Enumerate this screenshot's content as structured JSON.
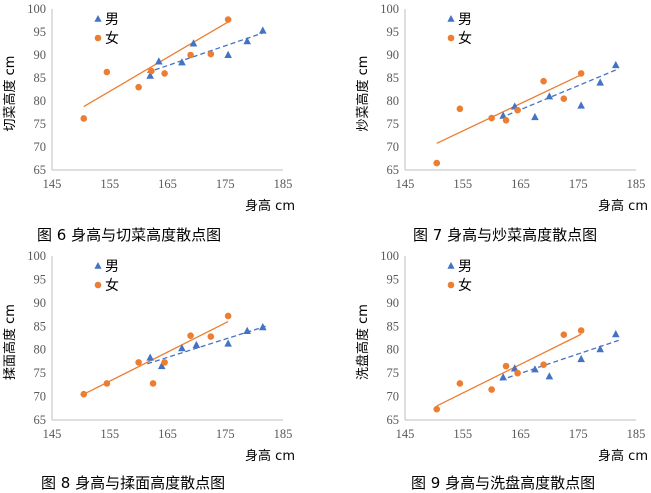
{
  "figure": {
    "captions": [
      "图 6  身高与切菜高度散点图",
      "图 7 身高与炒菜高度散点图",
      "图 8  身高与揉面高度散点图",
      "图 9 身高与洗盘高度散点图"
    ]
  },
  "chart_data": [
    {
      "type": "scatter",
      "title": "",
      "caption": "图 6  身高与切菜高度散点图",
      "xlabel": "身高  cm",
      "ylabel": "切菜高度  cm",
      "xlim": [
        145,
        185
      ],
      "ylim": [
        65,
        100
      ],
      "xticks": [
        145,
        155,
        165,
        175,
        185
      ],
      "yticks": [
        65,
        70,
        75,
        80,
        85,
        90,
        95,
        100
      ],
      "grid": false,
      "legend": "top-left",
      "series": [
        {
          "name": "男",
          "marker": "triangle",
          "color": "#4472C4",
          "points": [
            [
              162,
              85.5
            ],
            [
              163.5,
              88.6
            ],
            [
              167.5,
              88.4
            ],
            [
              169.5,
              92.5
            ],
            [
              175.5,
              90
            ],
            [
              178.8,
              93
            ],
            [
              181.5,
              95.3
            ]
          ],
          "trend": {
            "style": "dashed",
            "x": [
              161.5,
              182
            ],
            "y": [
              86.2,
              95
            ]
          }
        },
        {
          "name": "女",
          "marker": "circle",
          "color": "#ED7D31",
          "points": [
            [
              150.5,
              76.2
            ],
            [
              154.5,
              86.3
            ],
            [
              160,
              83
            ],
            [
              162.2,
              86.5
            ],
            [
              164.5,
              86
            ],
            [
              169,
              90
            ],
            [
              172.5,
              90.2
            ],
            [
              175.5,
              97.7
            ]
          ],
          "trend": {
            "style": "solid",
            "x": [
              150.5,
              175.5
            ],
            "y": [
              78.8,
              97.2
            ]
          }
        }
      ]
    },
    {
      "type": "scatter",
      "title": "",
      "caption": "图 7 身高与炒菜高度散点图",
      "xlabel": "身高  cm",
      "ylabel": "炒菜高度  cm",
      "xlim": [
        145,
        185
      ],
      "ylim": [
        65,
        100
      ],
      "xticks": [
        145,
        155,
        165,
        175,
        185
      ],
      "yticks": [
        65,
        70,
        75,
        80,
        85,
        90,
        95,
        100
      ],
      "grid": false,
      "legend": "top-left",
      "series": [
        {
          "name": "男",
          "marker": "triangle",
          "color": "#4472C4",
          "points": [
            [
              162,
              76.8
            ],
            [
              164,
              78.8
            ],
            [
              167.5,
              76.5
            ],
            [
              170,
              81
            ],
            [
              175.5,
              79
            ],
            [
              178.8,
              84
            ],
            [
              181.5,
              87.8
            ]
          ],
          "trend": {
            "style": "dashed",
            "x": [
              161.5,
              182
            ],
            "y": [
              76.3,
              87
            ]
          }
        },
        {
          "name": "女",
          "marker": "circle",
          "color": "#ED7D31",
          "points": [
            [
              150.5,
              66.5
            ],
            [
              154.5,
              78.3
            ],
            [
              160,
              76.3
            ],
            [
              162.5,
              75.8
            ],
            [
              164.5,
              78
            ],
            [
              169,
              84.3
            ],
            [
              172.5,
              80.5
            ],
            [
              175.5,
              86
            ]
          ],
          "trend": {
            "style": "solid",
            "x": [
              150.5,
              175.5
            ],
            "y": [
              70.8,
              85.7
            ]
          }
        }
      ]
    },
    {
      "type": "scatter",
      "title": "",
      "caption": "图 8  身高与揉面高度散点图",
      "xlabel": "身高  cm",
      "ylabel": "揉面高度  cm",
      "xlim": [
        145,
        185
      ],
      "ylim": [
        65,
        100
      ],
      "xticks": [
        145,
        155,
        165,
        175,
        185
      ],
      "yticks": [
        65,
        70,
        75,
        80,
        85,
        90,
        95,
        100
      ],
      "grid": false,
      "legend": "top-left",
      "series": [
        {
          "name": "男",
          "marker": "triangle",
          "color": "#4472C4",
          "points": [
            [
              162,
              78.3
            ],
            [
              164,
              76.5
            ],
            [
              167.5,
              80.3
            ],
            [
              170,
              81
            ],
            [
              175.5,
              81.3
            ],
            [
              178.8,
              84
            ],
            [
              181.5,
              84.8
            ]
          ],
          "trend": {
            "style": "dashed",
            "x": [
              161.5,
              182
            ],
            "y": [
              77,
              85
            ]
          }
        },
        {
          "name": "女",
          "marker": "circle",
          "color": "#ED7D31",
          "points": [
            [
              150.5,
              70.5
            ],
            [
              154.5,
              72.8
            ],
            [
              160,
              77.3
            ],
            [
              162.5,
              72.8
            ],
            [
              164.5,
              77.3
            ],
            [
              169,
              83
            ],
            [
              172.5,
              82.8
            ],
            [
              175.5,
              87.2
            ]
          ],
          "trend": {
            "style": "solid",
            "x": [
              150.5,
              175.5
            ],
            "y": [
              70.5,
              86
            ]
          }
        }
      ]
    },
    {
      "type": "scatter",
      "title": "",
      "caption": "图 9 身高与洗盘高度散点图",
      "xlabel": "身高  cm",
      "ylabel": "洗盘高度  cm",
      "xlim": [
        145,
        185
      ],
      "ylim": [
        65,
        100
      ],
      "xticks": [
        145,
        155,
        165,
        175,
        185
      ],
      "yticks": [
        65,
        70,
        75,
        80,
        85,
        90,
        95,
        100
      ],
      "grid": false,
      "legend": "top-left",
      "series": [
        {
          "name": "男",
          "marker": "triangle",
          "color": "#4472C4",
          "points": [
            [
              162,
              74.1
            ],
            [
              164,
              76
            ],
            [
              167.5,
              75.8
            ],
            [
              170,
              74.3
            ],
            [
              175.5,
              78
            ],
            [
              178.8,
              80.1
            ],
            [
              181.5,
              83.3
            ]
          ],
          "trend": {
            "style": "dashed",
            "x": [
              161.5,
              182
            ],
            "y": [
              73.5,
              82
            ]
          }
        },
        {
          "name": "女",
          "marker": "circle",
          "color": "#ED7D31",
          "points": [
            [
              150.5,
              67.3
            ],
            [
              154.5,
              72.8
            ],
            [
              160,
              71.5
            ],
            [
              162.5,
              76.5
            ],
            [
              164.5,
              75
            ],
            [
              169,
              76.8
            ],
            [
              172.5,
              83.2
            ],
            [
              175.5,
              84.1
            ]
          ],
          "trend": {
            "style": "solid",
            "x": [
              150.5,
              175.5
            ],
            "y": [
              68,
              83.3
            ]
          }
        }
      ]
    }
  ]
}
